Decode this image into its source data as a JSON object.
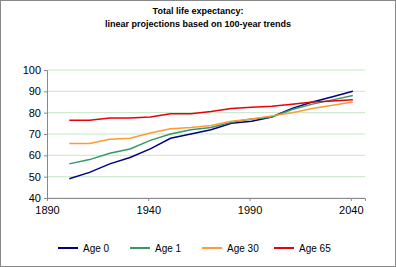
{
  "chart_data": {
    "type": "line",
    "title": "Total life expectancy:",
    "subtitle": "linear projections based on 100-year trends",
    "x": [
      1901,
      1911,
      1921,
      1931,
      1941,
      1951,
      1961,
      1971,
      1981,
      1991,
      2001,
      2011,
      2021,
      2031,
      2041
    ],
    "series": [
      {
        "name": "Age 0",
        "color": "#000080",
        "values": [
          49,
          52,
          56,
          59,
          63,
          68,
          70,
          72,
          75,
          76,
          78,
          82,
          85,
          87.5,
          90
        ]
      },
      {
        "name": "Age 1",
        "color": "#339966",
        "values": [
          56,
          58,
          61,
          63,
          67,
          70,
          72,
          73,
          75.5,
          77,
          78,
          81.5,
          84,
          86,
          88
        ]
      },
      {
        "name": "Age 30",
        "color": "#ff9933",
        "values": [
          65.5,
          65.5,
          67.5,
          68,
          70.5,
          72.5,
          73,
          74,
          76,
          77,
          78.5,
          80,
          82,
          83.5,
          85
        ]
      },
      {
        "name": "Age 65",
        "color": "#e8000b",
        "values": [
          76.5,
          76.5,
          77.5,
          77.5,
          78,
          79.5,
          79.5,
          80.5,
          82,
          82.5,
          83,
          84,
          85,
          85.5,
          86
        ]
      }
    ],
    "xlim": [
      1890,
      2047
    ],
    "xticks": [
      1890,
      1940,
      1990,
      2040
    ],
    "ylim": [
      40,
      100
    ],
    "yticks": [
      40,
      50,
      60,
      70,
      80,
      90,
      100
    ],
    "grid": true,
    "legend": "bottom"
  }
}
